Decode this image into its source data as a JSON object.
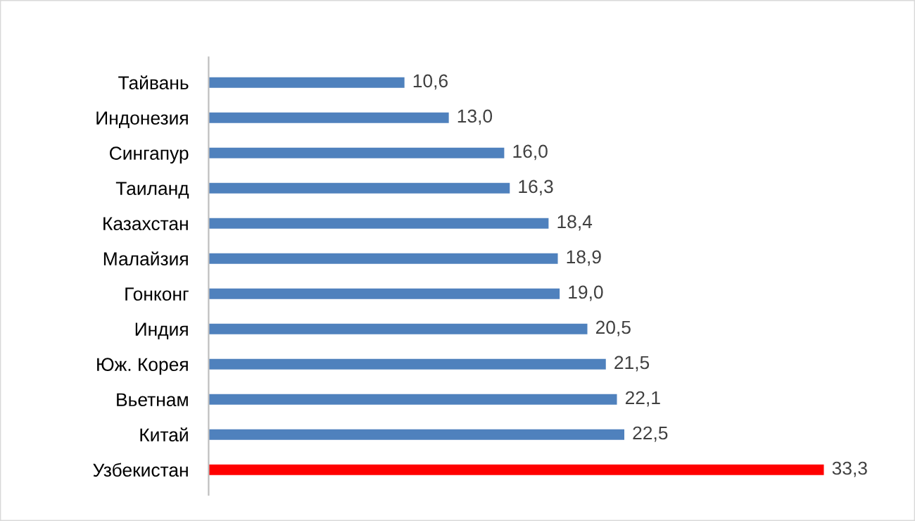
{
  "chart_data": {
    "type": "bar",
    "orientation": "horizontal",
    "categories": [
      "Тайвань",
      "Индонезия",
      "Сингапур",
      "Таиланд",
      "Казахстан",
      "Малайзия",
      "Гонконг",
      "Индия",
      "Юж. Корея",
      "Вьетнам",
      "Китай",
      "Узбекистан"
    ],
    "values": [
      10.6,
      13.0,
      16.0,
      16.3,
      18.4,
      18.9,
      19.0,
      20.5,
      21.5,
      22.1,
      22.5,
      33.3
    ],
    "value_labels": [
      "10,6",
      "13,0",
      "16,0",
      "16,3",
      "18,4",
      "18,9",
      "19,0",
      "20,5",
      "21,5",
      "22,1",
      "22,5",
      "33,3"
    ],
    "colors": [
      "#4f81bd",
      "#4f81bd",
      "#4f81bd",
      "#4f81bd",
      "#4f81bd",
      "#4f81bd",
      "#4f81bd",
      "#4f81bd",
      "#4f81bd",
      "#4f81bd",
      "#4f81bd",
      "#ff0000"
    ],
    "grid": false,
    "legend": false
  }
}
